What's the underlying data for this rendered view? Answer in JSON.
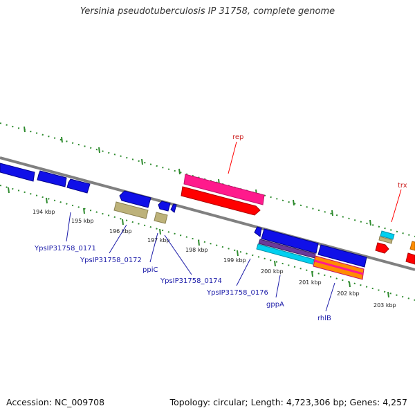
{
  "title": "Yersinia pseudotuberculosis IP 31758, complete genome",
  "footer": {
    "accession": "Accession: NC_009708",
    "summary": "Topology: circular; Length: 4,723,306 bp; Genes: 4,257"
  },
  "colors": {
    "backbone": "#808080",
    "tick": "#2e8b2e",
    "cds_blue": "#1010e8",
    "cds_khaki": "#bdb27a",
    "cds_pink": "#ff1a8c",
    "cds_red": "#ff0000",
    "cds_cyan": "#00d0f0",
    "cds_orange": "#ff8c00",
    "cds_purple": "#7a3a9a"
  },
  "kbp_labels": [
    "194 kbp",
    "195 kbp",
    "196 kbp",
    "197 kbp",
    "198 kbp",
    "199 kbp",
    "200 kbp",
    "201 kbp",
    "202 kbp",
    "203 kbp"
  ],
  "gene_labels": {
    "rep": "rep",
    "trx": "trx",
    "g0171": "YpsIP31758_0171",
    "g0172": "YpsIP31758_0172",
    "ppiC": "ppiC",
    "g0174": "YpsIP31758_0174",
    "g0176": "YpsIP31758_0176",
    "gppA": "gppA",
    "rhlB": "rhlB"
  }
}
